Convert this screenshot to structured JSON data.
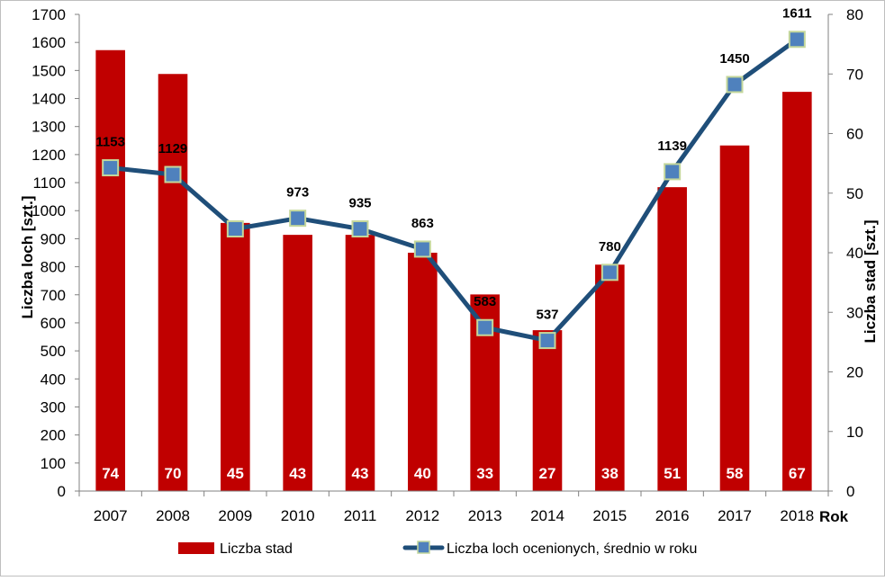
{
  "chart_data": {
    "type": "bar",
    "categories": [
      "2007",
      "2008",
      "2009",
      "2010",
      "2011",
      "2012",
      "2013",
      "2014",
      "2015",
      "2016",
      "2017",
      "2018"
    ],
    "series": [
      {
        "name": "Liczba stad",
        "kind": "bar",
        "axis": "right",
        "color": "#c00000",
        "values": [
          74,
          70,
          45,
          43,
          43,
          40,
          33,
          27,
          38,
          51,
          58,
          67
        ]
      },
      {
        "name": "Liczba loch ocenionych, średnio w roku",
        "kind": "line",
        "axis": "left",
        "color": "#1f4e79",
        "marker_color": "#4f81bd",
        "values": [
          1153,
          1129,
          935,
          973,
          935,
          863,
          583,
          537,
          780,
          1139,
          1450,
          1611
        ]
      }
    ],
    "xlabel": "Rok",
    "ylabel_left": "Liczba loch [szt.]",
    "ylabel_right": "Liczba stad [szt.]",
    "ylim_left": [
      0,
      1700
    ],
    "ylim_right": [
      0,
      80
    ],
    "yticks_left": [
      "0",
      "100",
      "200",
      "300",
      "400",
      "500",
      "600",
      "700",
      "800",
      "900",
      "1000",
      "1100",
      "1200",
      "1300",
      "1400",
      "1500",
      "1600",
      "1700"
    ],
    "yticks_right": [
      "0",
      "10",
      "20",
      "30",
      "40",
      "50",
      "60",
      "70",
      "80"
    ],
    "line_labels": [
      "1153",
      "1129",
      "",
      "973",
      "935",
      "863",
      "583",
      "537",
      "780",
      "1139",
      "1450",
      "1611"
    ],
    "grid": false,
    "legend_position": "bottom"
  }
}
